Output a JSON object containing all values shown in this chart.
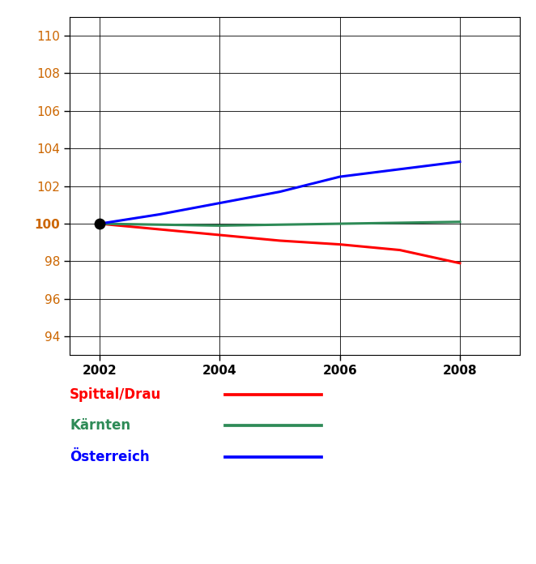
{
  "years": [
    2002,
    2003,
    2004,
    2005,
    2006,
    2007,
    2008
  ],
  "spittal": [
    100,
    99.7,
    99.4,
    99.1,
    98.9,
    98.6,
    97.9
  ],
  "kaernten": [
    100,
    99.95,
    99.9,
    99.95,
    100.0,
    100.05,
    100.1
  ],
  "oesterreich": [
    100,
    100.5,
    101.1,
    101.7,
    102.5,
    102.9,
    103.3
  ],
  "spittal_color": "#ff0000",
  "kaernten_color": "#2e8b57",
  "oesterreich_color": "#0000ff",
  "spittal_label": "Spittal/Drau",
  "kaernten_label": "Kärnten",
  "oesterreich_label": "Österreich",
  "ylim": [
    93,
    111
  ],
  "yticks": [
    94,
    96,
    98,
    100,
    102,
    104,
    106,
    108,
    110
  ],
  "xticks": [
    2002,
    2004,
    2006,
    2008
  ],
  "marker_point": [
    2002,
    100
  ],
  "linewidth": 2.2,
  "legend_label_fontsize": 12,
  "tick_fontsize": 11,
  "ytick_color": "#cc6600",
  "xtick_color": "#000000",
  "background_color": "#ffffff",
  "grid_color": "#000000",
  "xlim_left": 2001.5,
  "xlim_right": 2009.0
}
